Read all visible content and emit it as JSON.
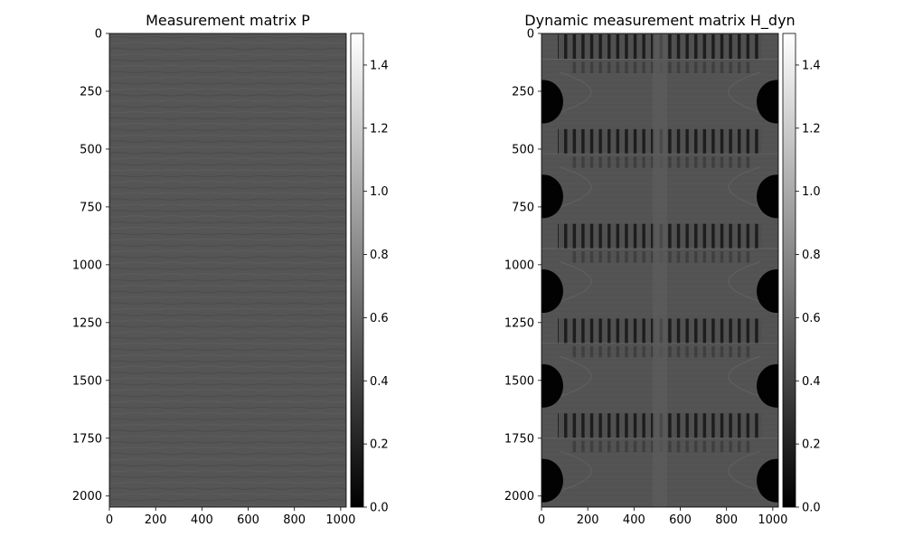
{
  "chart_data": [
    {
      "type": "heatmap",
      "title": "Measurement matrix P",
      "xlabel": "",
      "ylabel": "",
      "xlim": [
        0,
        1024
      ],
      "ylim": [
        2048,
        0
      ],
      "x_ticks": [
        0,
        200,
        400,
        600,
        800,
        1000
      ],
      "x_tick_labels": [
        "0",
        "200",
        "400",
        "600",
        "800",
        "1000"
      ],
      "y_ticks": [
        0,
        250,
        500,
        750,
        1000,
        1250,
        1500,
        1750,
        2000
      ],
      "y_tick_labels": [
        "0",
        "250",
        "500",
        "750",
        "1000",
        "1250",
        "1500",
        "1750",
        "2000"
      ],
      "colormap": "gray",
      "value_range": [
        0,
        1.5
      ],
      "dominant_value": 0.4,
      "colorbar": {
        "ticks": [
          0,
          0.2,
          0.4,
          0.6,
          0.8,
          1.0,
          1.2,
          1.4
        ],
        "tick_labels": [
          "0.0",
          "0.2",
          "0.4",
          "0.6",
          "0.8",
          "1.0",
          "1.2",
          "1.4"
        ]
      },
      "grid": false
    },
    {
      "type": "heatmap",
      "title": "Dynamic measurement matrix H_dyn",
      "xlabel": "",
      "ylabel": "",
      "xlim": [
        0,
        1024
      ],
      "ylim": [
        2048,
        0
      ],
      "x_ticks": [
        0,
        200,
        400,
        600,
        800,
        1000
      ],
      "x_tick_labels": [
        "0",
        "200",
        "400",
        "600",
        "800",
        "1000"
      ],
      "y_ticks": [
        0,
        250,
        500,
        750,
        1000,
        1250,
        1500,
        1750,
        2000
      ],
      "y_tick_labels": [
        "0",
        "250",
        "500",
        "750",
        "1000",
        "1250",
        "1500",
        "1750",
        "2000"
      ],
      "colormap": "gray",
      "value_range": [
        0,
        1.5
      ],
      "dominant_value": 0.4,
      "colorbar": {
        "ticks": [
          0,
          0.2,
          0.4,
          0.6,
          0.8,
          1.0,
          1.2,
          1.4
        ],
        "tick_labels": [
          "0.0",
          "0.2",
          "0.4",
          "0.6",
          "0.8",
          "1.0",
          "1.2",
          "1.4"
        ]
      },
      "grid": false
    }
  ]
}
